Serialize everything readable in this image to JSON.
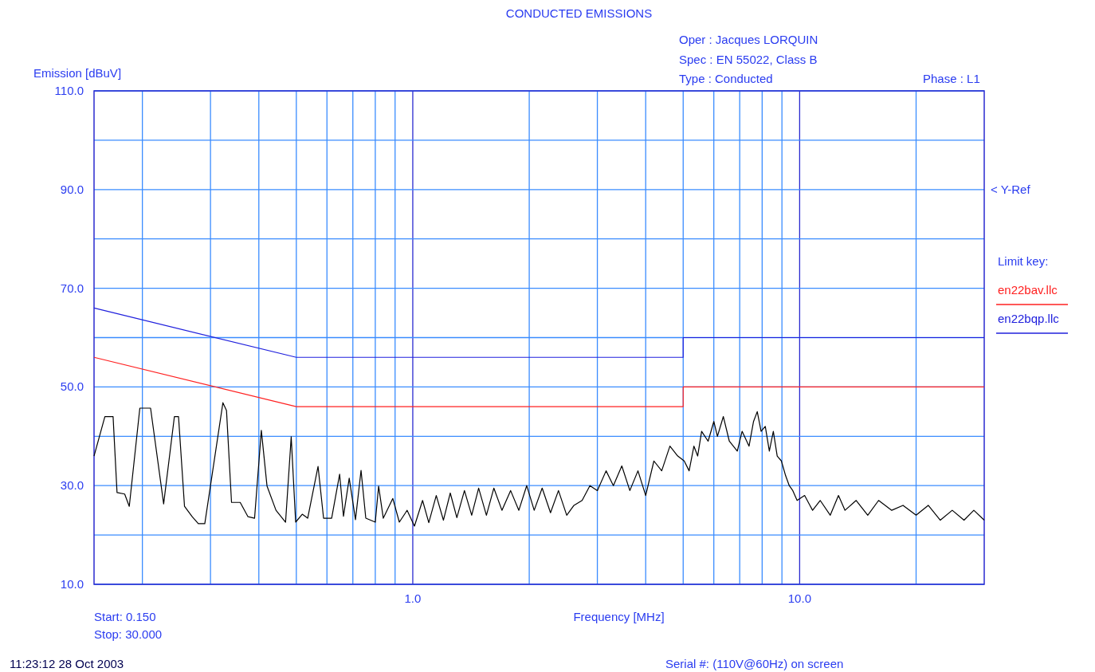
{
  "chart_data": {
    "type": "line",
    "title": "CONDUCTED EMISSIONS",
    "xlabel": "Frequency [MHz]",
    "ylabel": "Emission [dBuV]",
    "legend_title": "Limit key:",
    "log": "x",
    "grid": true,
    "legend": "right",
    "xlim": [
      0.15,
      30
    ],
    "ylim": [
      10,
      110
    ],
    "xticks": [
      {
        "value": 0.2,
        "label": null
      },
      {
        "value": 0.3,
        "label": null
      },
      {
        "value": 0.4,
        "label": null
      },
      {
        "value": 0.5,
        "label": null
      },
      {
        "value": 0.6,
        "label": null
      },
      {
        "value": 0.7,
        "label": null
      },
      {
        "value": 0.8,
        "label": null
      },
      {
        "value": 0.9,
        "label": null
      },
      {
        "value": 1,
        "label": "1.0"
      },
      {
        "value": 2,
        "label": null
      },
      {
        "value": 3,
        "label": null
      },
      {
        "value": 4,
        "label": null
      },
      {
        "value": 5,
        "label": null
      },
      {
        "value": 6,
        "label": null
      },
      {
        "value": 7,
        "label": null
      },
      {
        "value": 8,
        "label": null
      },
      {
        "value": 9,
        "label": null
      },
      {
        "value": 10,
        "label": "10.0"
      },
      {
        "value": 20,
        "label": null
      }
    ],
    "yticks": [
      {
        "value": 10,
        "label": "10.0"
      },
      {
        "value": 20,
        "label": null
      },
      {
        "value": 30,
        "label": "30.0"
      },
      {
        "value": 40,
        "label": null
      },
      {
        "value": 50,
        "label": "50.0"
      },
      {
        "value": 60,
        "label": null
      },
      {
        "value": 70,
        "label": "70.0"
      },
      {
        "value": 80,
        "label": null
      },
      {
        "value": 90,
        "label": "90.0"
      },
      {
        "value": 100,
        "label": null
      },
      {
        "value": 110,
        "label": "110.0"
      }
    ],
    "series": [
      {
        "name": "en22bav.llc",
        "color": "#ff2020",
        "x": [
          0.15,
          0.5,
          0.5,
          5,
          5,
          30
        ],
        "values": [
          56,
          46,
          46,
          46,
          50,
          50
        ]
      },
      {
        "name": "en22bqp.llc",
        "color": "#2020dd",
        "x": [
          0.15,
          0.5,
          0.5,
          5,
          5,
          30
        ],
        "values": [
          66,
          56,
          56,
          56,
          60,
          60
        ]
      },
      {
        "color": "#000000",
        "x": [
          0.15,
          0.16,
          0.168,
          0.172,
          0.18,
          0.185,
          0.197,
          0.21,
          0.227,
          0.242,
          0.248,
          0.257,
          0.269,
          0.279,
          0.29,
          0.323,
          0.33,
          0.34,
          0.358,
          0.375,
          0.39,
          0.406,
          0.42,
          0.443,
          0.469,
          0.485,
          0.498,
          0.518,
          0.535,
          0.569,
          0.588,
          0.617,
          0.647,
          0.662,
          0.685,
          0.711,
          0.735,
          0.756,
          0.8,
          0.816,
          0.839,
          0.888,
          0.923,
          0.967,
          1.01,
          1.06,
          1.1,
          1.15,
          1.2,
          1.25,
          1.3,
          1.36,
          1.42,
          1.48,
          1.55,
          1.62,
          1.7,
          1.79,
          1.88,
          1.97,
          2.06,
          2.16,
          2.27,
          2.38,
          2.5,
          2.61,
          2.74,
          2.87,
          3.0,
          3.16,
          3.3,
          3.47,
          3.64,
          3.82,
          4.0,
          4.2,
          4.4,
          4.62,
          4.84,
          5.03,
          5.18,
          5.33,
          5.45,
          5.58,
          5.8,
          6.0,
          6.13,
          6.35,
          6.58,
          6.9,
          7.1,
          7.4,
          7.6,
          7.77,
          7.95,
          8.15,
          8.35,
          8.55,
          8.75,
          8.97,
          9.2,
          9.4,
          9.6,
          9.85,
          10.3,
          10.8,
          11.3,
          12.0,
          12.6,
          13.1,
          14.0,
          15.0,
          16.0,
          17.3,
          18.5,
          20.0,
          21.5,
          23.1,
          24.8,
          26.6,
          28.2,
          30.0
        ],
        "values": [
          36,
          44,
          44,
          28.6,
          28.3,
          25.8,
          45.7,
          45.7,
          26.3,
          44,
          44,
          25.8,
          23.7,
          22.3,
          22.3,
          46.8,
          45.2,
          26.6,
          26.6,
          23.7,
          23.4,
          41.2,
          29.9,
          25,
          22.6,
          39.9,
          22.6,
          24.2,
          23.4,
          33.9,
          23.4,
          23.4,
          32.3,
          23.8,
          31.5,
          23.1,
          33.1,
          23.4,
          22.6,
          29.9,
          23.4,
          27.4,
          22.6,
          25,
          21.8,
          27,
          22.5,
          28,
          23,
          28.5,
          23.5,
          29,
          24,
          29.5,
          24,
          29.5,
          25,
          29,
          25,
          30,
          25,
          29.5,
          24.5,
          29,
          24,
          26,
          27,
          30,
          29,
          33,
          30,
          34,
          29,
          33,
          28,
          35,
          33,
          38,
          36,
          35,
          33,
          38,
          36,
          41,
          39,
          43,
          40,
          44,
          39,
          37,
          41,
          38,
          43,
          45,
          41,
          42,
          37,
          41,
          36,
          35,
          32,
          30,
          29,
          27,
          28,
          25,
          27,
          24,
          28,
          25,
          27,
          24,
          27,
          25,
          26,
          24,
          26,
          23,
          25,
          23,
          25,
          23
        ]
      }
    ],
    "annotations": [
      "< Y-Ref",
      "Oper : Jacques LORQUIN",
      "Spec : EN 55022, Class B",
      "Type : Conducted",
      "Phase : L1",
      "Start: 0.150",
      "Stop: 30.000",
      "11:23:12  28 Oct 2003",
      "Serial #: (110V@60Hz) on screen"
    ]
  }
}
